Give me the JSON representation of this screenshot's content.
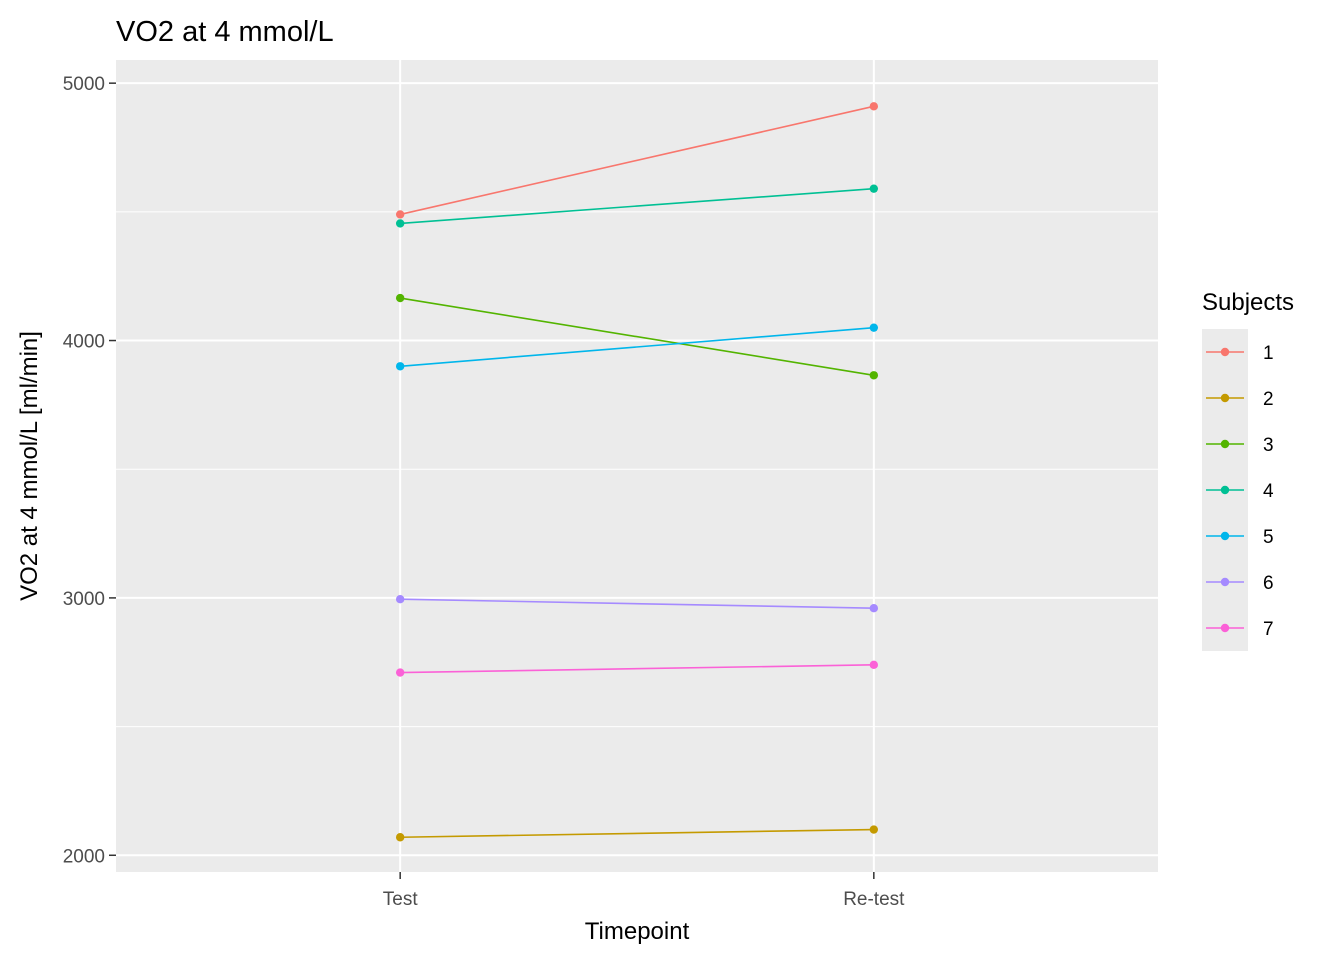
{
  "chart_data": {
    "type": "line",
    "title": "VO2 at 4 mmol/L",
    "xlabel": "Timepoint",
    "ylabel": "VO2 at 4 mmol/L [ml/min]",
    "categories": [
      "Test",
      "Re-test"
    ],
    "ylim": [
      1935,
      5090
    ],
    "yticks": [
      2000,
      3000,
      4000,
      5000
    ],
    "grid": true,
    "legend": {
      "title": "Subjects",
      "placement": "right"
    },
    "series": [
      {
        "name": "1",
        "color": "#F8766D",
        "values": [
          4490,
          4910
        ]
      },
      {
        "name": "2",
        "color": "#C49A00",
        "values": [
          2070,
          2100
        ]
      },
      {
        "name": "3",
        "color": "#53B400",
        "values": [
          4165,
          3865
        ]
      },
      {
        "name": "4",
        "color": "#00C094",
        "values": [
          4455,
          4590
        ]
      },
      {
        "name": "5",
        "color": "#00B6EB",
        "values": [
          3900,
          4050
        ]
      },
      {
        "name": "6",
        "color": "#A58AFF",
        "values": [
          2995,
          2960
        ]
      },
      {
        "name": "7",
        "color": "#FB61D7",
        "values": [
          2710,
          2740
        ]
      }
    ]
  }
}
